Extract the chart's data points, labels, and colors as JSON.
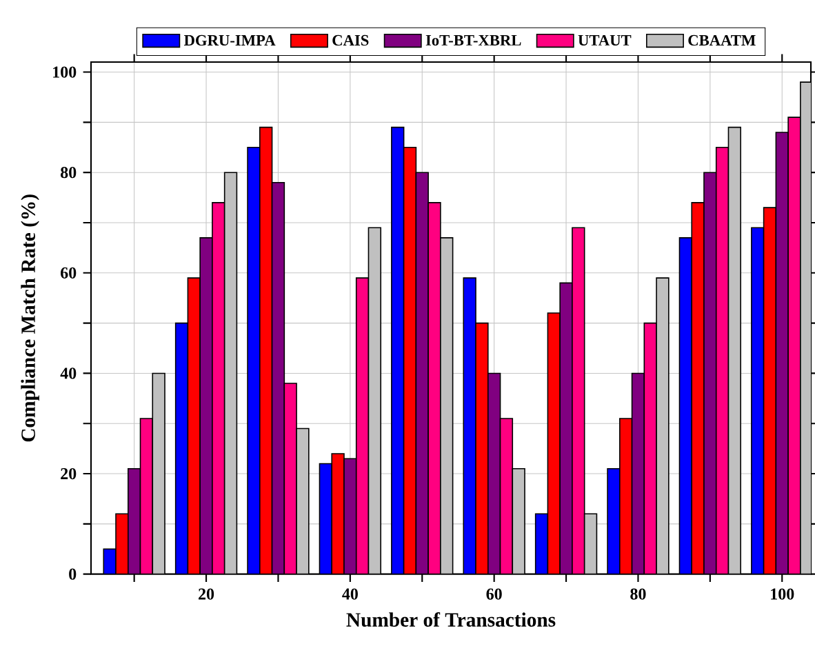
{
  "chart_data": {
    "type": "bar",
    "xlabel": "Number of Transactions",
    "ylabel": "Compliance Match Rate (%)",
    "x": [
      10,
      20,
      30,
      40,
      50,
      60,
      70,
      80,
      90,
      100
    ],
    "series": [
      {
        "name": "DGRU-IMPA",
        "color": "#0000ff",
        "values": [
          5,
          50,
          85,
          22,
          89,
          59,
          12,
          21,
          67,
          69
        ]
      },
      {
        "name": "CAIS",
        "color": "#ff0000",
        "values": [
          12,
          59,
          89,
          24,
          85,
          50,
          52,
          31,
          74,
          73
        ]
      },
      {
        "name": "IoT-BT-XBRL",
        "color": "#800080",
        "values": [
          21,
          67,
          78,
          23,
          80,
          40,
          58,
          40,
          80,
          88
        ]
      },
      {
        "name": "UTAUT",
        "color": "#ff0080",
        "values": [
          31,
          74,
          38,
          59,
          74,
          31,
          69,
          50,
          85,
          91
        ]
      },
      {
        "name": "CBAATM",
        "color": "#c0c0c0",
        "values": [
          40,
          80,
          29,
          69,
          67,
          21,
          12,
          59,
          89,
          98
        ]
      }
    ],
    "xlim": [
      4,
      104
    ],
    "xticks": [
      {
        "value": 10,
        "label": null
      },
      20,
      {
        "value": 30,
        "label": null
      },
      40,
      {
        "value": 50,
        "label": null
      },
      60,
      {
        "value": 70,
        "label": null
      },
      80,
      {
        "value": 90,
        "label": null
      },
      100
    ],
    "ylim": [
      0,
      102
    ],
    "yticks": [
      0,
      {
        "value": 10,
        "label": null
      },
      20,
      {
        "value": 30,
        "label": null
      },
      40,
      {
        "value": 50,
        "label": null
      },
      60,
      {
        "value": 70,
        "label": null
      },
      80,
      {
        "value": 90,
        "label": null
      },
      100
    ],
    "grid": true,
    "legend": "top"
  }
}
